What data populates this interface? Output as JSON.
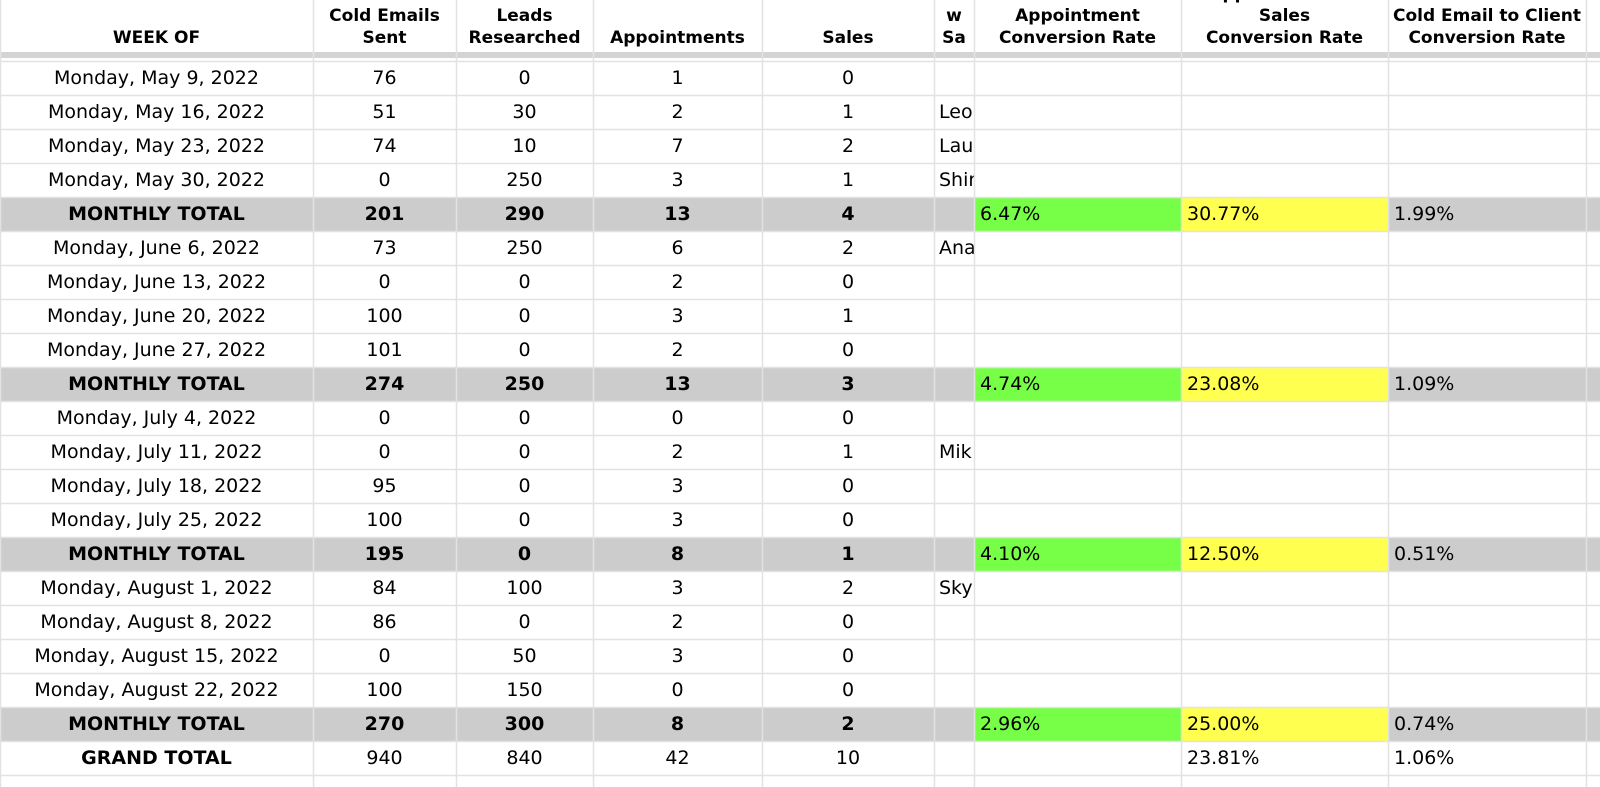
{
  "columns": {
    "week_of": "WEEK OF",
    "cold_emails_1": "Cold Emails",
    "cold_emails_2": "Sent",
    "leads_1": "Leads",
    "leads_2": "Researched",
    "appointments": "Appointments",
    "sales": "Sales",
    "new_sales_partial": "w Sa",
    "email_appt_1": "Email to Appointment",
    "email_appt_2": "Conversion Rate",
    "appt_sales_1": "Appointment to Sales",
    "appt_sales_2": "Conversion Rate",
    "email_client_1": "Cold Email to Client",
    "email_client_2": "Conversion Rate"
  },
  "rows": [
    {
      "type": "week",
      "week": "Monday, May 9, 2022",
      "emails": "76",
      "leads": "0",
      "appts": "1",
      "sales": "0",
      "new_sale": "",
      "ea": "",
      "as": "",
      "ec": ""
    },
    {
      "type": "week",
      "week": "Monday, May 16, 2022",
      "emails": "51",
      "leads": "30",
      "appts": "2",
      "sales": "1",
      "new_sale": "Leo",
      "ea": "",
      "as": "",
      "ec": ""
    },
    {
      "type": "week",
      "week": "Monday, May 23, 2022",
      "emails": "74",
      "leads": "10",
      "appts": "7",
      "sales": "2",
      "new_sale": "Lau",
      "ea": "",
      "as": "",
      "ec": ""
    },
    {
      "type": "week",
      "week": "Monday, May 30, 2022",
      "emails": "0",
      "leads": "250",
      "appts": "3",
      "sales": "1",
      "new_sale": "Shir",
      "ea": "",
      "as": "",
      "ec": ""
    },
    {
      "type": "monthly",
      "week": "MONTHLY TOTAL",
      "emails": "201",
      "leads": "290",
      "appts": "13",
      "sales": "4",
      "new_sale": "",
      "ea": "6.47%",
      "as": "30.77%",
      "ec": "1.99%"
    },
    {
      "type": "week",
      "week": "Monday, June 6, 2022",
      "emails": "73",
      "leads": "250",
      "appts": "6",
      "sales": "2",
      "new_sale": "Ana",
      "ea": "",
      "as": "",
      "ec": ""
    },
    {
      "type": "week",
      "week": "Monday, June 13, 2022",
      "emails": "0",
      "leads": "0",
      "appts": "2",
      "sales": "0",
      "new_sale": "",
      "ea": "",
      "as": "",
      "ec": ""
    },
    {
      "type": "week",
      "week": "Monday, June 20, 2022",
      "emails": "100",
      "leads": "0",
      "appts": "3",
      "sales": "1",
      "new_sale": "",
      "ea": "",
      "as": "",
      "ec": ""
    },
    {
      "type": "week",
      "week": "Monday, June 27, 2022",
      "emails": "101",
      "leads": "0",
      "appts": "2",
      "sales": "0",
      "new_sale": "",
      "ea": "",
      "as": "",
      "ec": ""
    },
    {
      "type": "monthly",
      "week": "MONTHLY TOTAL",
      "emails": "274",
      "leads": "250",
      "appts": "13",
      "sales": "3",
      "new_sale": "",
      "ea": "4.74%",
      "as": "23.08%",
      "ec": "1.09%"
    },
    {
      "type": "week",
      "week": "Monday, July 4, 2022",
      "emails": "0",
      "leads": "0",
      "appts": "0",
      "sales": "0",
      "new_sale": "",
      "ea": "",
      "as": "",
      "ec": ""
    },
    {
      "type": "week",
      "week": "Monday, July 11, 2022",
      "emails": "0",
      "leads": "0",
      "appts": "2",
      "sales": "1",
      "new_sale": "Mik",
      "ea": "",
      "as": "",
      "ec": ""
    },
    {
      "type": "week",
      "week": "Monday, July 18, 2022",
      "emails": "95",
      "leads": "0",
      "appts": "3",
      "sales": "0",
      "new_sale": "",
      "ea": "",
      "as": "",
      "ec": ""
    },
    {
      "type": "week",
      "week": "Monday, July 25, 2022",
      "emails": "100",
      "leads": "0",
      "appts": "3",
      "sales": "0",
      "new_sale": "",
      "ea": "",
      "as": "",
      "ec": ""
    },
    {
      "type": "monthly",
      "week": "MONTHLY TOTAL",
      "emails": "195",
      "leads": "0",
      "appts": "8",
      "sales": "1",
      "new_sale": "",
      "ea": "4.10%",
      "as": "12.50%",
      "ec": "0.51%"
    },
    {
      "type": "week",
      "week": "Monday, August 1, 2022",
      "emails": "84",
      "leads": "100",
      "appts": "3",
      "sales": "2",
      "new_sale": "Sky",
      "ea": "",
      "as": "",
      "ec": ""
    },
    {
      "type": "week",
      "week": "Monday, August 8, 2022",
      "emails": "86",
      "leads": "0",
      "appts": "2",
      "sales": "0",
      "new_sale": "",
      "ea": "",
      "as": "",
      "ec": ""
    },
    {
      "type": "week",
      "week": "Monday, August 15, 2022",
      "emails": "0",
      "leads": "50",
      "appts": "3",
      "sales": "0",
      "new_sale": "",
      "ea": "",
      "as": "",
      "ec": ""
    },
    {
      "type": "week",
      "week": "Monday, August 22, 2022",
      "emails": "100",
      "leads": "150",
      "appts": "0",
      "sales": "0",
      "new_sale": "",
      "ea": "",
      "as": "",
      "ec": ""
    },
    {
      "type": "monthly",
      "week": "MONTHLY TOTAL",
      "emails": "270",
      "leads": "300",
      "appts": "8",
      "sales": "2",
      "new_sale": "",
      "ea": "2.96%",
      "as": "25.00%",
      "ec": "0.74%"
    },
    {
      "type": "grand",
      "week": "GRAND TOTAL",
      "emails": "940",
      "leads": "840",
      "appts": "42",
      "sales": "10",
      "new_sale": "",
      "ea": "",
      "as": "23.81%",
      "ec": "1.06%"
    }
  ],
  "colors": {
    "monthly_total_row": "#cccccc",
    "email_to_appointment_highlight": "#77ff47",
    "appointment_to_sales_highlight": "#ffff4f",
    "gridline": "#e2e2e2"
  }
}
